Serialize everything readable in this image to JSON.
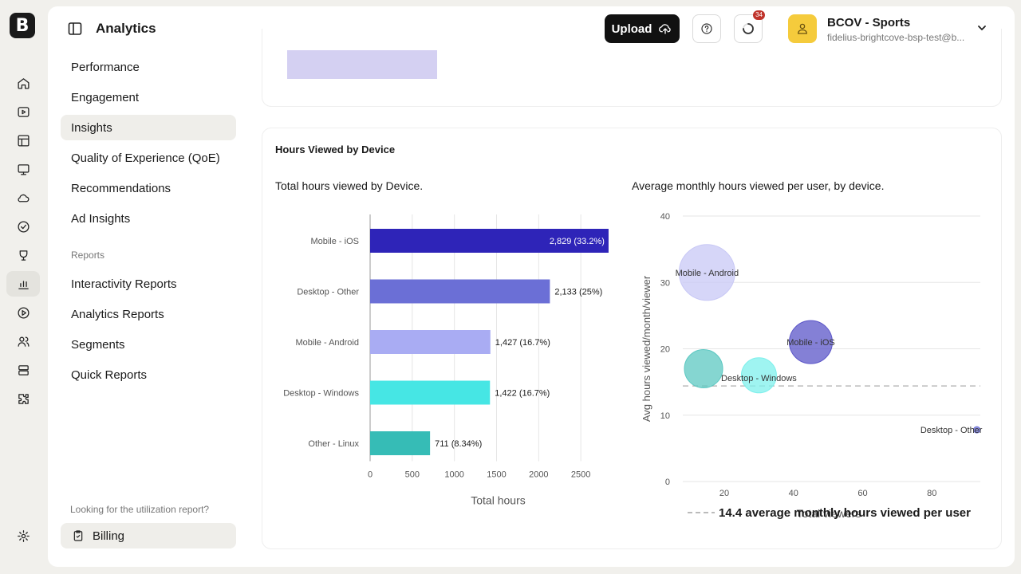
{
  "app": {
    "logo": "B",
    "title": "Analytics"
  },
  "rail": {
    "icons": [
      "home-icon",
      "video-icon",
      "layout-icon",
      "monitor-icon",
      "cloud-icon",
      "badge-check-icon",
      "brand-icon",
      "analytics-icon",
      "play-circle-icon",
      "users-icon",
      "server-icon",
      "puzzle-icon",
      "settings-icon"
    ]
  },
  "header": {
    "upload_label": "Upload",
    "notification_count": "34",
    "account_name": "BCOV - Sports",
    "account_email": "fidelius-brightcove-bsp-test@b..."
  },
  "sidebar": {
    "items": [
      {
        "label": "Performance"
      },
      {
        "label": "Engagement"
      },
      {
        "label": "Insights"
      },
      {
        "label": "Quality of Experience (QoE)"
      },
      {
        "label": "Recommendations"
      },
      {
        "label": "Ad Insights"
      }
    ],
    "reports_header": "Reports",
    "reports": [
      {
        "label": "Interactivity Reports"
      },
      {
        "label": "Analytics Reports"
      },
      {
        "label": "Segments"
      },
      {
        "label": "Quick Reports"
      }
    ],
    "utilization_text": "Looking for the utilization report?",
    "billing_label": "Billing"
  },
  "panel": {
    "title": "Hours Viewed by Device"
  },
  "chart_data": [
    {
      "type": "bar",
      "title": "Total hours viewed by Device.",
      "xlabel": "Total hours",
      "categories": [
        "Mobile - iOS",
        "Desktop - Other",
        "Mobile - Android",
        "Desktop - Windows",
        "Other - Linux"
      ],
      "values": [
        2829,
        2133,
        1427,
        1422,
        711
      ],
      "data_labels": [
        "2,829 (33.2%)",
        "2,133 (25%)",
        "1,427 (16.7%)",
        "1,422 (16.7%)",
        "711 (8.34%)"
      ],
      "colors": [
        "#2e24b8",
        "#6b6fd6",
        "#a9acf3",
        "#46e6e4",
        "#36bcb6"
      ],
      "xlim": [
        0,
        3000
      ],
      "xticks": [
        0,
        500,
        1000,
        1500,
        2000,
        2500,
        3000
      ],
      "grid": true
    },
    {
      "type": "scatter",
      "title": "Average monthly hours viewed per user, by device.",
      "xlabel": "Total viewers",
      "ylabel": "Avg hours viewed/month/viewer",
      "xlim": [
        8,
        94
      ],
      "ylim": [
        0,
        40
      ],
      "xticks": [
        20,
        40,
        60,
        80
      ],
      "yticks": [
        0,
        10,
        20,
        30,
        40
      ],
      "points": [
        {
          "label": "Mobile - Android",
          "x": 15,
          "y": 31.5,
          "size": 35,
          "color": "#c8c8f5"
        },
        {
          "label": "Mobile - iOS",
          "x": 45,
          "y": 21,
          "size": 27,
          "color": "#5b55c8"
        },
        {
          "label": "Desktop - Windows",
          "x": 30,
          "y": 16,
          "size": 22,
          "color": "#7ff0ec"
        },
        {
          "label": "Other - Linux",
          "x": 14,
          "y": 17,
          "size": 24,
          "color": "#5cc8c2"
        },
        {
          "label": "Desktop - Other",
          "x": 93,
          "y": 7.8,
          "size": 4,
          "color": "#6b6fd6"
        }
      ],
      "point_labels_shown": [
        "Mobile - Android",
        "Mobile - iOS",
        "Desktop - Windows",
        "Desktop - Other"
      ],
      "reference_line": {
        "y": 14.4,
        "label": "14.4 average monthly hours viewed per user"
      },
      "grid": true
    }
  ]
}
